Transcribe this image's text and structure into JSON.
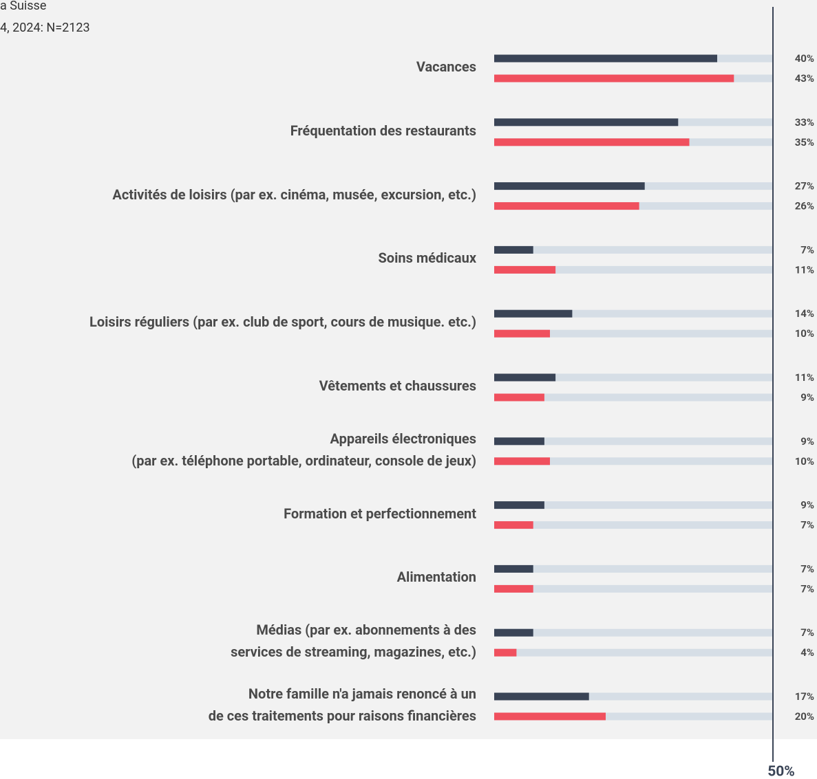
{
  "chart_data": {
    "type": "hbar",
    "subtitle_lines": [
      "a Suisse",
      "4,  2024: N=2123"
    ],
    "categories": [
      "Vacances",
      "Fréquentation des restaurants",
      "Activités de loisirs (par ex. cinéma, musée, excursion, etc.)",
      "Soins médicaux",
      "Loisirs réguliers (par ex. club de sport, cours de musique. etc.)",
      "Vêtements et chaussures",
      "Appareils électroniques\n(par ex. téléphone portable, ordinateur, console de jeux)",
      "Formation et perfectionnement",
      "Alimentation",
      "Médias (par ex. abonnements à des\nservices de streaming, magazines, etc.)",
      "Notre famille n'a jamais renoncé à un\nde ces traitements pour raisons financières"
    ],
    "series": [
      {
        "color": "#3a4456",
        "values": [
          40,
          33,
          27,
          7,
          14,
          11,
          9,
          9,
          7,
          7,
          17
        ],
        "value_labels": [
          "40%",
          "33%",
          "27%",
          "7%",
          "14%",
          "11%",
          "9%",
          "9%",
          "7%",
          "7%",
          "17%"
        ]
      },
      {
        "color": "#f0505e",
        "values": [
          43,
          35,
          26,
          11,
          10,
          9,
          10,
          7,
          7,
          4,
          20
        ],
        "value_labels": [
          "43%",
          "35%",
          "26%",
          "11%",
          "10%",
          "9%",
          "10%",
          "7%",
          "7%",
          "4%",
          "20%"
        ]
      }
    ],
    "track_color": "#d6dee6",
    "xlim": [
      0,
      50
    ],
    "xticks": [
      {
        "value": 50,
        "label": "50%"
      }
    ]
  }
}
